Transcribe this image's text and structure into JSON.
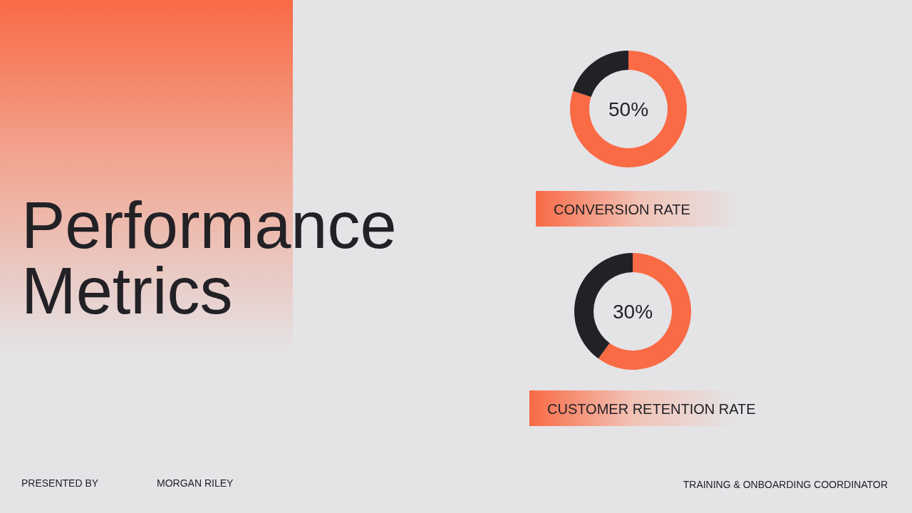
{
  "chart_data": [
    {
      "type": "other",
      "title": "Performance Metrics",
      "annotations": [
        "PRESENTED BY",
        "MORGAN RILEY",
        "TRAINING & ONBOARDING COORDINATOR"
      ]
    },
    {
      "type": "donut",
      "title": "CONVERSION RATE",
      "categories": [
        null,
        null
      ],
      "values": [
        80,
        20
      ],
      "colors": [
        "#f96a45",
        "#222126"
      ],
      "annotations": [
        "50%"
      ]
    },
    {
      "type": "donut",
      "title": "CUSTOMER RETENTION RATE",
      "categories": [
        null,
        null
      ],
      "values": [
        60,
        40
      ],
      "colors": [
        "#f96a45",
        "#222126"
      ],
      "annotations": [
        "30%"
      ]
    }
  ]
}
